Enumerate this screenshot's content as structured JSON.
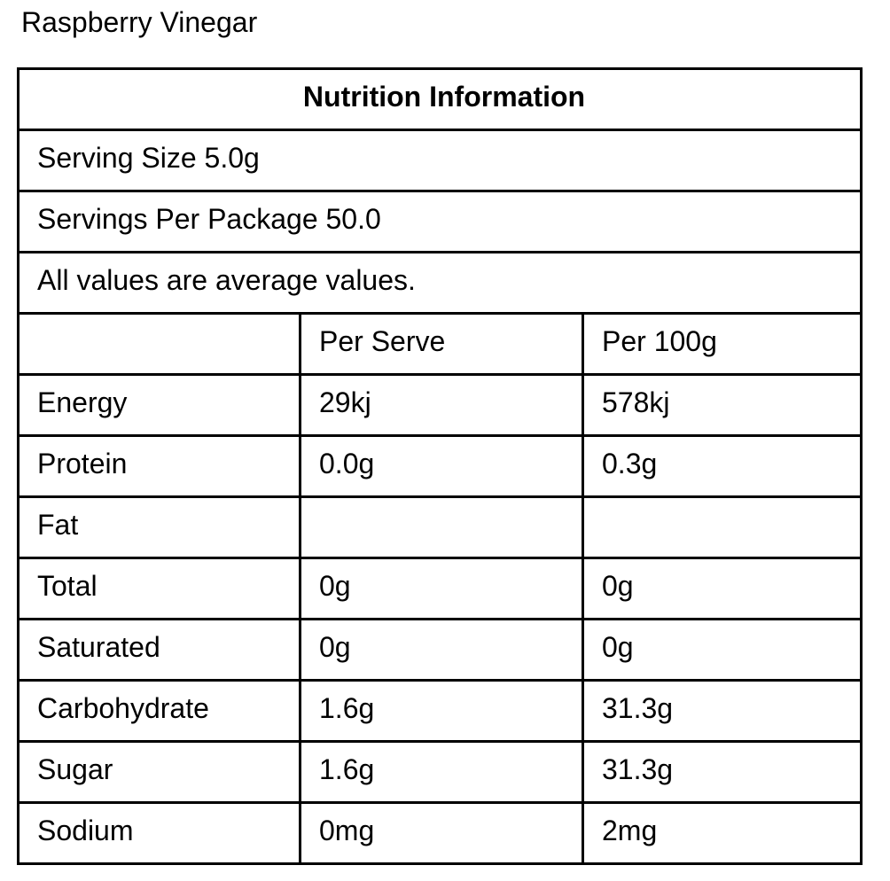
{
  "page": {
    "title": "Raspberry Vinegar"
  },
  "nutrition": {
    "table_title": "Nutrition Information",
    "serving_size": "Serving Size 5.0g",
    "servings_per_package": "Servings Per Package 50.0",
    "note": "All values are average values.",
    "columns": {
      "nutrient": "",
      "per_serve": "Per Serve",
      "per_100g": "Per 100g"
    },
    "rows": [
      {
        "name": "Energy",
        "per_serve": "29kj",
        "per_100g": "578kj",
        "indent": false
      },
      {
        "name": "Protein",
        "per_serve": "0.0g",
        "per_100g": "0.3g",
        "indent": false
      },
      {
        "name": "Fat",
        "per_serve": "",
        "per_100g": "",
        "indent": false
      },
      {
        "name": "Total",
        "per_serve": "0g",
        "per_100g": "0g",
        "indent": true
      },
      {
        "name": "Saturated",
        "per_serve": "0g",
        "per_100g": "0g",
        "indent": true
      },
      {
        "name": "Carbohydrate",
        "per_serve": "1.6g",
        "per_100g": "31.3g",
        "indent": false
      },
      {
        "name": "Sugar",
        "per_serve": "1.6g",
        "per_100g": "31.3g",
        "indent": false
      },
      {
        "name": "Sodium",
        "per_serve": "0mg",
        "per_100g": "2mg",
        "indent": false
      }
    ],
    "colors": {
      "border": "#000000",
      "text": "#000000",
      "background": "#ffffff"
    }
  }
}
